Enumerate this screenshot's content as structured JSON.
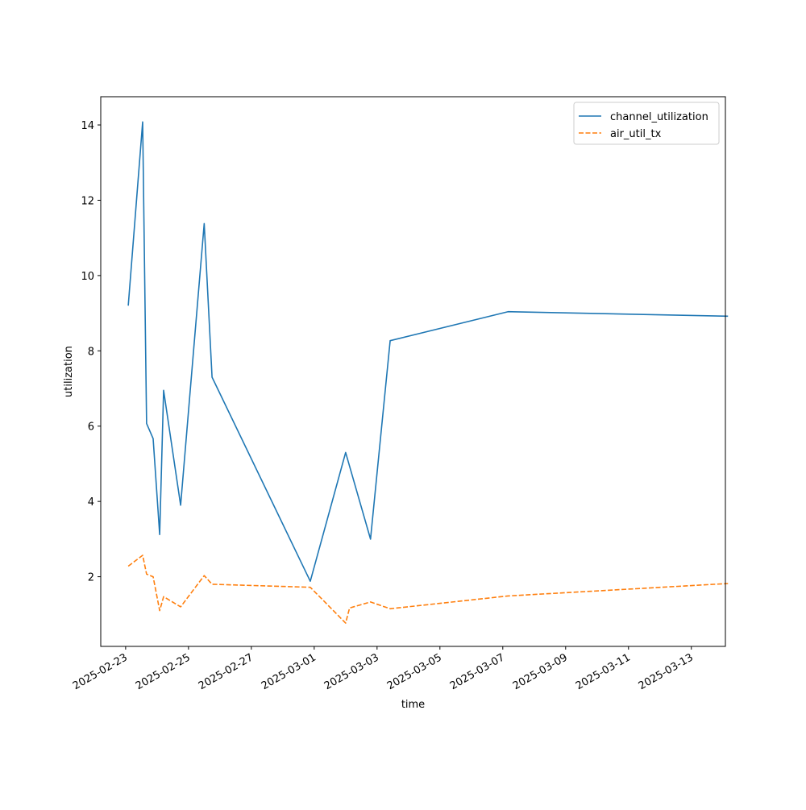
{
  "chart_data": {
    "type": "line",
    "title": "",
    "xlabel": "time",
    "ylabel": "utilization",
    "x_type": "date",
    "xlim": [
      "2025-02-22T05:00",
      "2025-03-14T02:00"
    ],
    "ylim": [
      0.15,
      14.75
    ],
    "x_ticks": [
      "2025-02-23",
      "2025-02-25",
      "2025-02-27",
      "2025-03-01",
      "2025-03-03",
      "2025-03-05",
      "2025-03-07",
      "2025-03-09",
      "2025-03-11",
      "2025-03-13"
    ],
    "y_ticks": [
      2,
      4,
      6,
      8,
      10,
      12,
      14
    ],
    "grid": false,
    "legend_position": "upper right",
    "series": [
      {
        "name": "channel_utilization",
        "color": "#1f77b4",
        "line_style": "solid",
        "points": [
          [
            "2025-02-23T02:00",
            9.2
          ],
          [
            "2025-02-23T13:00",
            14.08
          ],
          [
            "2025-02-23T16:00",
            6.07
          ],
          [
            "2025-02-23T21:00",
            5.67
          ],
          [
            "2025-02-24T02:00",
            3.12
          ],
          [
            "2025-02-24T05:00",
            6.95
          ],
          [
            "2025-02-24T18:00",
            3.9
          ],
          [
            "2025-02-25T12:00",
            11.38
          ],
          [
            "2025-02-25T18:00",
            7.3
          ],
          [
            "2025-02-28T21:00",
            1.88
          ],
          [
            "2025-03-02T00:00",
            5.3
          ],
          [
            "2025-03-02T19:00",
            3.0
          ],
          [
            "2025-03-03T10:00",
            8.27
          ],
          [
            "2025-03-07T04:00",
            9.04
          ],
          [
            "2025-03-14T04:00",
            8.92
          ]
        ]
      },
      {
        "name": "air_util_tx",
        "color": "#ff7f0e",
        "line_style": "dashed",
        "points": [
          [
            "2025-02-23T02:00",
            2.28
          ],
          [
            "2025-02-23T13:00",
            2.57
          ],
          [
            "2025-02-23T16:00",
            2.07
          ],
          [
            "2025-02-23T21:00",
            2.0
          ],
          [
            "2025-02-24T02:00",
            1.1
          ],
          [
            "2025-02-24T05:00",
            1.47
          ],
          [
            "2025-02-24T18:00",
            1.2
          ],
          [
            "2025-02-25T12:00",
            2.03
          ],
          [
            "2025-02-25T18:00",
            1.8
          ],
          [
            "2025-02-28T21:00",
            1.72
          ],
          [
            "2025-03-02T00:00",
            0.77
          ],
          [
            "2025-03-02T03:00",
            1.17
          ],
          [
            "2025-03-02T19:00",
            1.33
          ],
          [
            "2025-03-03T10:00",
            1.15
          ],
          [
            "2025-03-07T04:00",
            1.49
          ],
          [
            "2025-03-14T04:00",
            1.82
          ]
        ]
      }
    ]
  }
}
